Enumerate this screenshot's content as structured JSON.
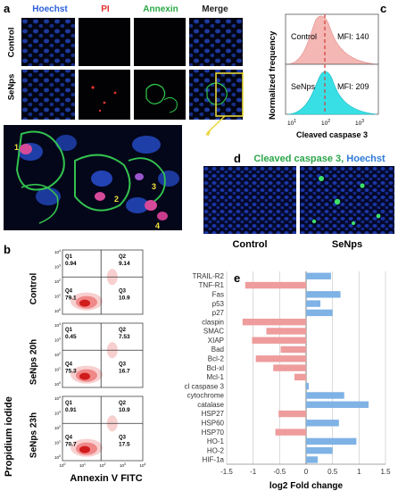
{
  "panels": {
    "a": "a",
    "b": "b",
    "c": "c",
    "d": "d",
    "e": "e"
  },
  "panel_a": {
    "columns": [
      "Hoechst",
      "PI",
      "Annexin",
      "Merge"
    ],
    "column_colors": [
      "#2b5fd9",
      "#e0312f",
      "#27a844",
      "#222222"
    ],
    "rows": [
      "Control",
      "SeNps"
    ],
    "cell_numbers": [
      "1",
      "2",
      "3",
      "4"
    ]
  },
  "panel_b": {
    "rows": [
      "Control",
      "SeNps 20h",
      "SeNps 23h"
    ],
    "quadrants": [
      {
        "Q1": "0.94",
        "Q2": "9.14",
        "Q3": "10.9",
        "Q4": "79.1"
      },
      {
        "Q1": "0.45",
        "Q2": "7.53",
        "Q3": "16.7",
        "Q4": "75.3"
      },
      {
        "Q1": "0.91",
        "Q2": "10.9",
        "Q3": "17.5",
        "Q4": "70.7"
      }
    ],
    "quadrant_names": [
      "Q1",
      "Q2",
      "Q3",
      "Q4"
    ],
    "y_ticks": [
      "10^4",
      "10^3",
      "10^2",
      "10^1",
      "10^0"
    ],
    "x_ticks": [
      "10^0",
      "10^1",
      "10^2",
      "10^3",
      "10^4"
    ],
    "ylabel": "Propidium iodide",
    "xlabel": "Annexin V FITC"
  },
  "panel_c": {
    "ylabel": "Normalized frequency",
    "xlabel": "Cleaved caspase 3",
    "x_ticks": [
      "10^1",
      "10^2",
      "10^3"
    ],
    "histograms": [
      {
        "name": "Control",
        "mfi": "MFI: 140",
        "color": "#f4b7b3"
      },
      {
        "name": "SeNps",
        "mfi": "MFI: 209",
        "color": "#38e0e6"
      }
    ]
  },
  "panel_d": {
    "title_part1": "Cleaved caspase 3,",
    "title_part2": "Hoechst",
    "title_color1": "#2aa64a",
    "title_color2": "#2e7bd6",
    "conditions": [
      "Control",
      "SeNps"
    ]
  },
  "chart_data": {
    "type": "bar",
    "orientation": "horizontal",
    "categories": [
      "TRAIL-R2",
      "TNF-R1",
      "Fas",
      "p53",
      "p27",
      "claspin",
      "SMAC",
      "XIAP",
      "Bad",
      "Bcl-2",
      "Bcl-xl",
      "Mcl-1",
      "cl caspase 3",
      "cytochrome",
      "catalase",
      "HSP27",
      "HSP60",
      "HSP70",
      "HO-1",
      "HO-2",
      "HIF-1a"
    ],
    "values": [
      0.47,
      -1.15,
      0.65,
      0.27,
      0.5,
      -1.2,
      -0.75,
      -1.02,
      -0.48,
      -0.95,
      -0.62,
      -0.22,
      0.05,
      0.72,
      1.18,
      -0.52,
      0.62,
      -0.58,
      0.95,
      0.5,
      0.22
    ],
    "positive_color": "#7fb2e5",
    "negative_color": "#ee9c9c",
    "xlabel": "log2 Fold change",
    "xlim": [
      -1.5,
      1.5
    ],
    "x_ticks": [
      "-1.5",
      "-1",
      "-0.5",
      "0",
      "0.5",
      "1",
      "1.5"
    ],
    "grid": true
  }
}
